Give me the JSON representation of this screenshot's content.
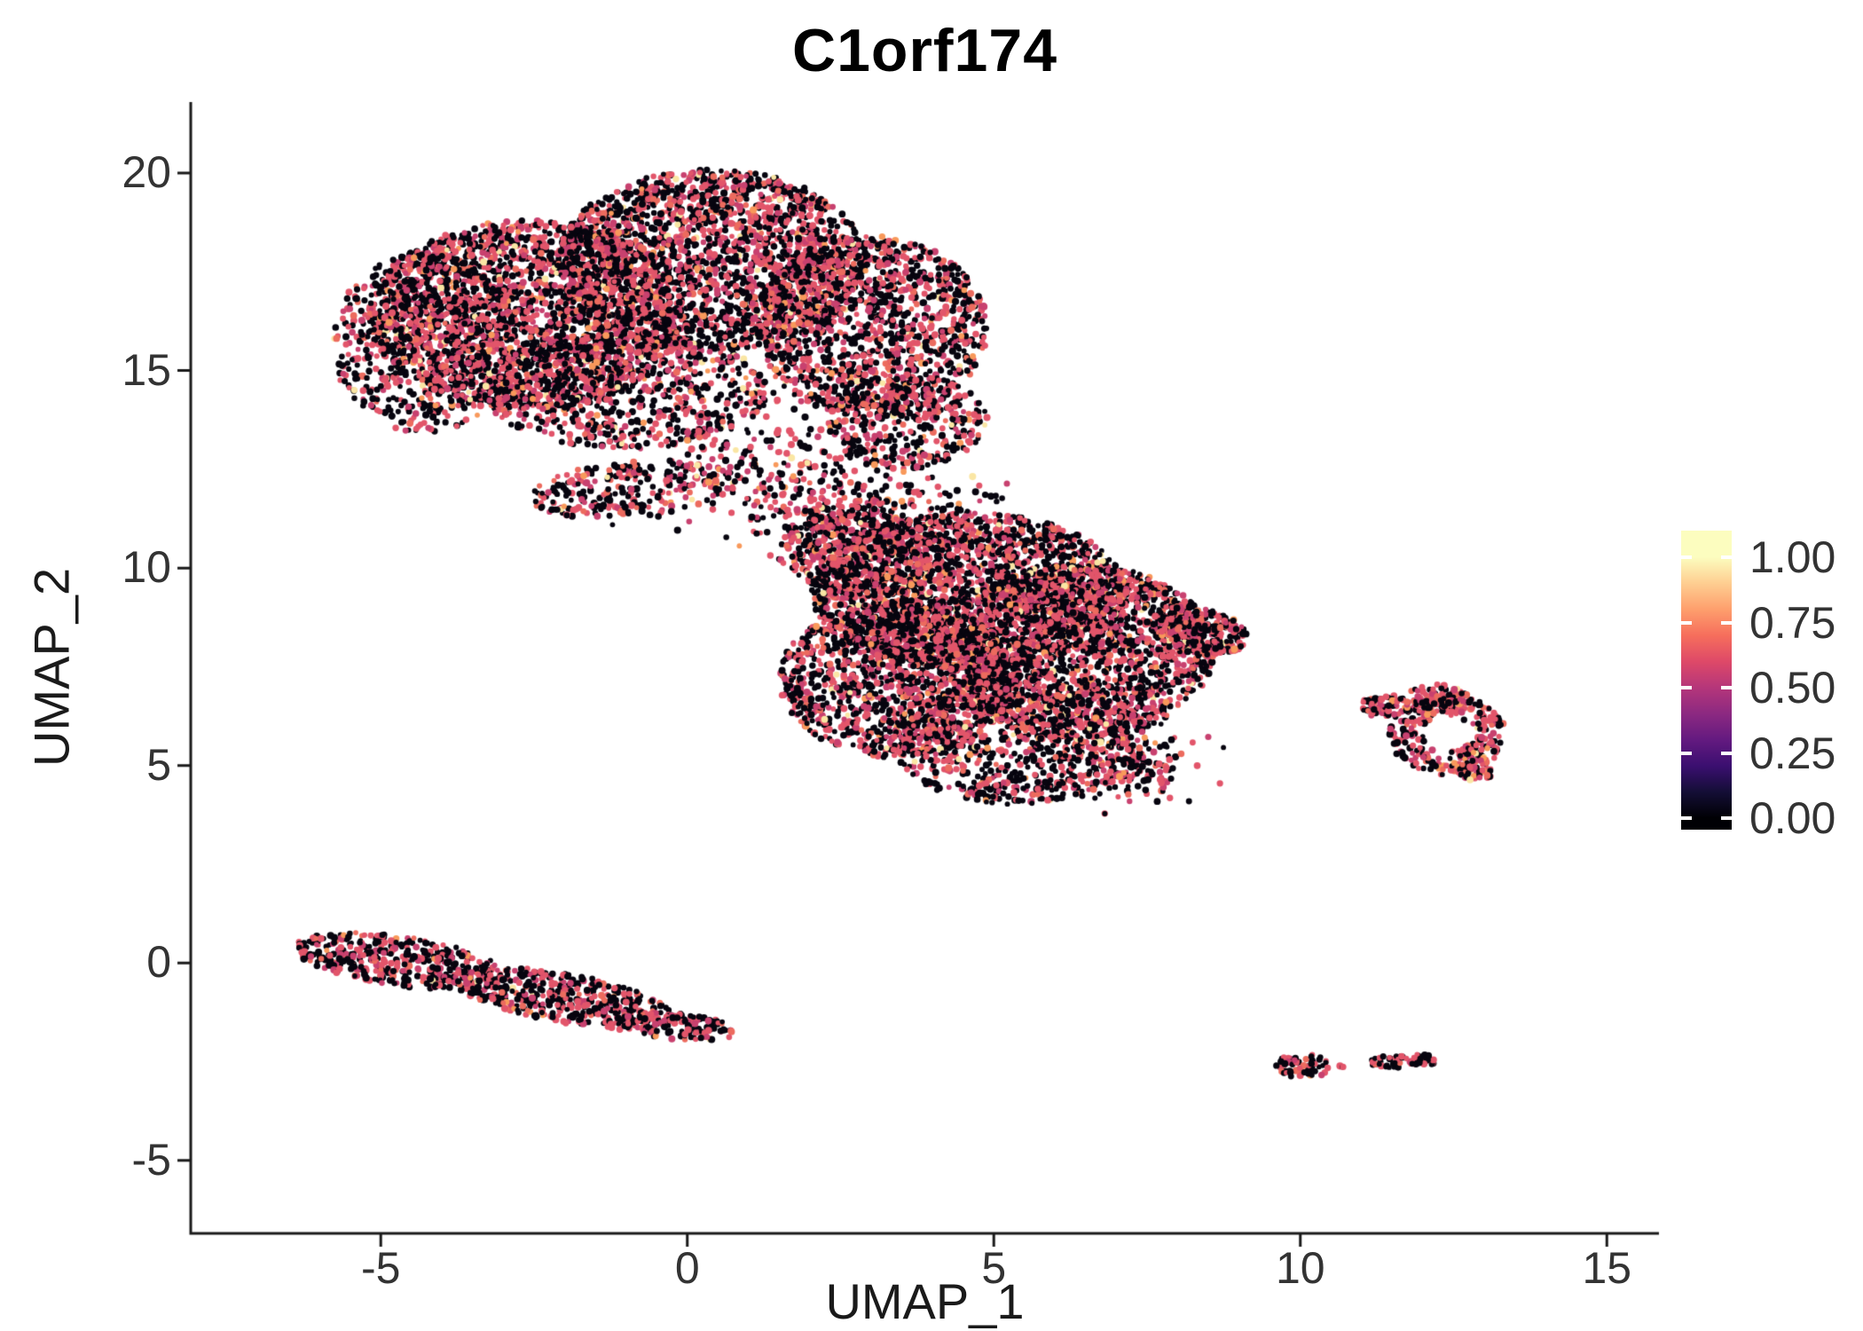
{
  "chart_data": {
    "type": "scatter",
    "title": "C1orf174",
    "xlabel": "UMAP_1",
    "ylabel": "UMAP_2",
    "x_ticks": [
      -5,
      0,
      5,
      10,
      15
    ],
    "y_ticks": [
      -5,
      0,
      5,
      10,
      15,
      20
    ],
    "x_domain": [
      -8.1,
      15.85
    ],
    "y_domain": [
      -6.85,
      21.8
    ],
    "grid": false,
    "background": "#FFFFFF",
    "axis_color": "#1A1A1A",
    "colorbar": {
      "labels": [
        "1.00",
        "0.75",
        "0.50",
        "0.25",
        "0.00"
      ],
      "values": [
        1.0,
        0.75,
        0.5,
        0.25,
        0.0
      ],
      "position": "right",
      "stops": [
        "#000004",
        "#140E36",
        "#3B0F70",
        "#641A80",
        "#8C2981",
        "#B5367A",
        "#DE4968",
        "#F66E5C",
        "#FE9F6D",
        "#FECE91",
        "#FCFDBF"
      ]
    },
    "palette": {
      "colors": [
        "#07050F",
        "#C8416F",
        "#E2556A",
        "#EC6B5E",
        "#F8995B",
        "#FAE6A4"
      ],
      "default_weights": [
        0.5,
        0.13,
        0.27,
        0.06,
        0.025,
        0.015
      ]
    },
    "point_radius": 3.3,
    "seed": 7,
    "clusters": [
      {
        "name": "upper-left-blob",
        "components": [
          {
            "shape": "disc",
            "cx": -2.6,
            "cy": 16.4,
            "rx": 2.6,
            "ry": 2.4,
            "n": 2300
          },
          {
            "shape": "disc",
            "cx": 0.4,
            "cy": 17.8,
            "rx": 2.5,
            "ry": 2.3,
            "n": 2100
          },
          {
            "shape": "disc",
            "cx": 3.0,
            "cy": 16.1,
            "rx": 1.9,
            "ry": 2.3,
            "n": 1300
          },
          {
            "shape": "disc",
            "cx": -4.3,
            "cy": 15.7,
            "rx": 1.5,
            "ry": 2.3,
            "n": 600
          },
          {
            "shape": "disc",
            "cx": -1.0,
            "cy": 14.5,
            "rx": 2.3,
            "ry": 1.5,
            "n": 700
          },
          {
            "shape": "disc",
            "cx": 3.6,
            "cy": 13.7,
            "rx": 1.3,
            "ry": 1.2,
            "n": 350
          },
          {
            "shape": "disc",
            "cx": -0.9,
            "cy": 12.0,
            "rx": 1.7,
            "ry": 0.7,
            "rot": 8,
            "n": 260
          },
          {
            "shape": "gauss",
            "cx": 1.5,
            "cy": 12.8,
            "rx": 1.0,
            "ry": 0.9,
            "n": 220
          },
          {
            "shape": "gauss",
            "cx": 2.3,
            "cy": 11.6,
            "rx": 0.7,
            "ry": 0.6,
            "n": 90
          }
        ]
      },
      {
        "name": "central-blob",
        "components": [
          {
            "shape": "disc",
            "cx": 4.6,
            "cy": 9.4,
            "rx": 2.6,
            "ry": 2.0,
            "n": 2200
          },
          {
            "shape": "disc",
            "cx": 6.4,
            "cy": 7.9,
            "rx": 2.2,
            "ry": 2.2,
            "n": 1700
          },
          {
            "shape": "disc",
            "cx": 3.4,
            "cy": 7.2,
            "rx": 1.9,
            "ry": 2.0,
            "n": 1300
          },
          {
            "shape": "disc",
            "cx": 5.4,
            "cy": 5.7,
            "rx": 2.1,
            "ry": 1.7,
            "n": 900
          },
          {
            "shape": "disc",
            "cx": 8.3,
            "cy": 8.4,
            "rx": 0.85,
            "ry": 0.6,
            "rot": -20,
            "n": 260
          },
          {
            "shape": "disc",
            "cx": 2.9,
            "cy": 10.4,
            "rx": 1.3,
            "ry": 1.1,
            "n": 450
          },
          {
            "shape": "gauss",
            "cx": 2.2,
            "cy": 11.2,
            "rx": 0.55,
            "ry": 0.5,
            "n": 110
          },
          {
            "shape": "gauss",
            "cx": 7.2,
            "cy": 5.0,
            "rx": 0.6,
            "ry": 0.5,
            "n": 160
          },
          {
            "shape": "gauss",
            "cx": 3.8,
            "cy": 11.6,
            "rx": 0.8,
            "ry": 0.45,
            "n": 90
          },
          {
            "shape": "disc",
            "cx": 6.85,
            "cy": 3.75,
            "rx": 0.07,
            "ry": 0.06,
            "n": 2
          }
        ]
      },
      {
        "name": "lower-left-streak",
        "weights": [
          0.54,
          0.13,
          0.25,
          0.05,
          0.02,
          0.01
        ],
        "components": [
          {
            "shape": "disc",
            "cx": -4.7,
            "cy": 0.05,
            "rx": 1.75,
            "ry": 0.62,
            "rot": -13,
            "n": 420
          },
          {
            "shape": "disc",
            "cx": -2.0,
            "cy": -0.9,
            "rx": 1.9,
            "ry": 0.62,
            "rot": -17,
            "n": 470
          },
          {
            "shape": "disc",
            "cx": -0.15,
            "cy": -1.6,
            "rx": 0.95,
            "ry": 0.35,
            "rot": -10,
            "n": 130
          }
        ]
      },
      {
        "name": "right-ring-cluster",
        "weights": [
          0.37,
          0.16,
          0.33,
          0.09,
          0.03,
          0.02
        ],
        "components": [
          {
            "shape": "ring",
            "cx": 12.4,
            "cy": 5.8,
            "rx": 0.95,
            "ry": 1.05,
            "inner": 0.42,
            "n": 300
          },
          {
            "shape": "disc",
            "cx": 11.4,
            "cy": 6.5,
            "rx": 0.45,
            "ry": 0.28,
            "n": 60
          },
          {
            "shape": "disc",
            "cx": 11.12,
            "cy": 6.6,
            "rx": 0.1,
            "ry": 0.08,
            "n": 6
          },
          {
            "shape": "disc",
            "cx": 12.2,
            "cy": 6.75,
            "rx": 0.5,
            "ry": 0.3,
            "n": 50
          },
          {
            "shape": "disc",
            "cx": 12.85,
            "cy": 4.85,
            "rx": 0.3,
            "ry": 0.3,
            "n": 40
          }
        ]
      },
      {
        "name": "bottom-right-small-clusters",
        "components": [
          {
            "shape": "disc",
            "cx": 10.05,
            "cy": -2.6,
            "rx": 0.45,
            "ry": 0.32,
            "n": 60
          },
          {
            "shape": "disc",
            "cx": 11.5,
            "cy": -2.5,
            "rx": 0.38,
            "ry": 0.15,
            "n": 35
          },
          {
            "shape": "disc",
            "cx": 12.0,
            "cy": -2.45,
            "rx": 0.3,
            "ry": 0.14,
            "n": 32
          },
          {
            "shape": "disc",
            "cx": 10.68,
            "cy": -2.62,
            "rx": 0.06,
            "ry": 0.05,
            "n": 3
          }
        ]
      }
    ]
  }
}
